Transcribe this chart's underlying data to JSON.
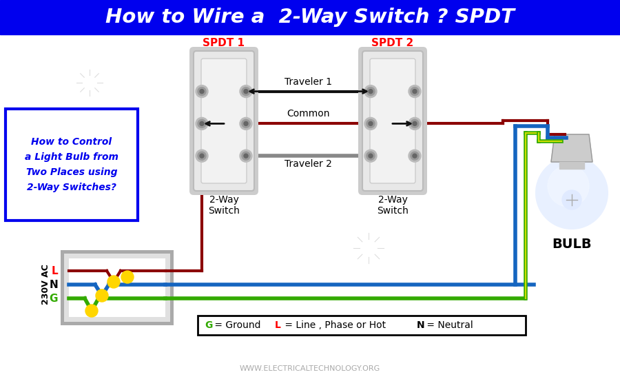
{
  "title": "How to Wire a  2-Way Switch ? SPDT",
  "title_bg": "#0000EE",
  "title_color": "#FFFFFF",
  "bg_color": "#FFFFFF",
  "subtitle_text": "How to Control\na Light Bulb from\nTwo Places using\n2-Way Switches?",
  "subtitle_box_edge": "#0000EE",
  "subtitle_text_color": "#0000EE",
  "spdt1_label": "SPDT 1",
  "spdt2_label": "SPDT 2",
  "spdt_label_color": "#FF0000",
  "switch1_label": "2-Way\nSwitch",
  "switch2_label": "2-Way\nSwitch",
  "traveler1_label": "Traveler 1",
  "traveler2_label": "Traveler 2",
  "common_label": "Common",
  "wire_dark_red": "#8B0000",
  "wire_blue": "#1565C0",
  "wire_green": "#33AA00",
  "wire_yellow_green": "#CCDD00",
  "wire_gray": "#888888",
  "wire_black": "#111111",
  "wire_yellow": "#FFD600",
  "voltage_label": "230V AC",
  "L_label": "L",
  "N_label": "N",
  "G_label": "G",
  "bulb_label": "BULB",
  "legend_G_color": "#33AA00",
  "legend_L_color": "#FF0000",
  "website": "WWW.ELECTRICALTECHNOLOGY.ORG"
}
